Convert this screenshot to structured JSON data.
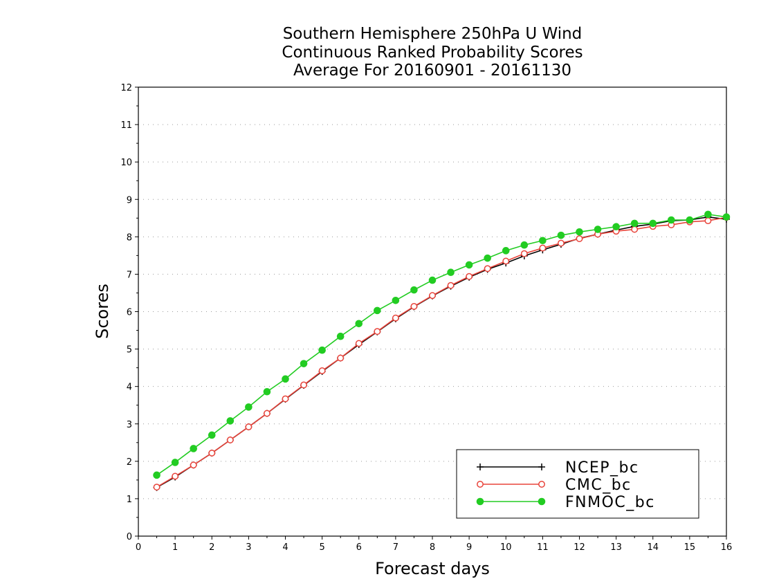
{
  "chart_data": {
    "type": "line",
    "title": [
      "Southern Hemisphere 250hPa U Wind",
      "Continuous Ranked Probability Scores",
      "Average For 20160901 - 20161130"
    ],
    "xlabel": "Forecast days",
    "ylabel": "Scores",
    "xlim": [
      0,
      16
    ],
    "ylim": [
      0,
      12
    ],
    "x_ticks": [
      "0",
      "1",
      "2",
      "3",
      "4",
      "5",
      "6",
      "7",
      "8",
      "9",
      "10",
      "11",
      "12",
      "13",
      "14",
      "15",
      "16"
    ],
    "y_ticks": [
      "0",
      "1",
      "2",
      "3",
      "4",
      "5",
      "6",
      "7",
      "8",
      "9",
      "10",
      "11",
      "12"
    ],
    "grid": "horizontal dotted",
    "legend_position": "bottom-right",
    "x": [
      0.5,
      1,
      1.5,
      2,
      2.5,
      3,
      3.5,
      4,
      4.5,
      5,
      5.5,
      6,
      6.5,
      7,
      7.5,
      8,
      8.5,
      9,
      9.5,
      10,
      10.5,
      11,
      11.5,
      12,
      12.5,
      13,
      13.5,
      14,
      14.5,
      15,
      15.5,
      16
    ],
    "series": [
      {
        "name": "NCEP_bc",
        "color": "#000000",
        "marker": "plus",
        "values": [
          1.3,
          1.58,
          1.9,
          2.22,
          2.57,
          2.92,
          3.28,
          3.66,
          4.03,
          4.4,
          4.76,
          5.12,
          5.46,
          5.81,
          6.13,
          6.42,
          6.68,
          6.92,
          7.13,
          7.3,
          7.49,
          7.65,
          7.8,
          7.96,
          8.07,
          8.18,
          8.28,
          8.34,
          8.43,
          8.45,
          8.53,
          8.47
        ]
      },
      {
        "name": "CMC_bc",
        "color": "#e8433a",
        "marker": "open-circle",
        "values": [
          1.31,
          1.6,
          1.9,
          2.22,
          2.57,
          2.92,
          3.28,
          3.67,
          4.04,
          4.42,
          4.76,
          5.15,
          5.47,
          5.83,
          6.14,
          6.43,
          6.7,
          6.94,
          7.15,
          7.35,
          7.55,
          7.7,
          7.83,
          7.95,
          8.07,
          8.15,
          8.2,
          8.28,
          8.32,
          8.4,
          8.43,
          8.52
        ]
      },
      {
        "name": "FNMOC_bc",
        "color": "#22cc22",
        "marker": "filled-circle",
        "values": [
          1.63,
          1.97,
          2.34,
          2.7,
          3.08,
          3.45,
          3.86,
          4.2,
          4.61,
          4.97,
          5.34,
          5.68,
          6.03,
          6.3,
          6.58,
          6.84,
          7.05,
          7.25,
          7.43,
          7.63,
          7.78,
          7.9,
          8.04,
          8.13,
          8.2,
          8.27,
          8.36,
          8.36,
          8.45,
          8.45,
          8.6,
          8.53
        ]
      }
    ]
  }
}
